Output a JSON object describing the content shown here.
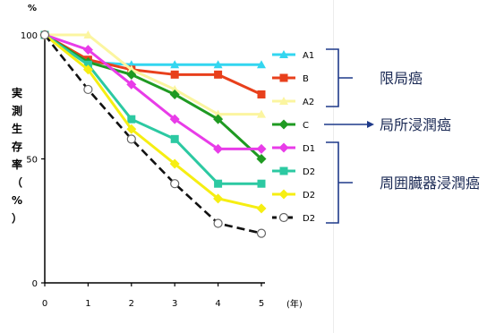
{
  "chart_data": {
    "type": "line",
    "y_unit": "%",
    "x_unit": "(年)",
    "ylabel": "実測生存率（%）",
    "x": [
      0,
      1,
      2,
      3,
      4,
      5
    ],
    "xlim": [
      0,
      5
    ],
    "ylim": [
      0,
      100
    ],
    "y_ticks": [
      0,
      50,
      100
    ],
    "grid": false,
    "series": [
      {
        "name": "A1",
        "color": "#33d6f0",
        "marker": "triangle",
        "values": [
          100,
          89,
          88,
          88,
          88,
          88
        ]
      },
      {
        "name": "B",
        "color": "#e8401c",
        "marker": "square",
        "values": [
          100,
          90,
          86,
          84,
          84,
          76
        ]
      },
      {
        "name": "A2",
        "color": "#fbf5a0",
        "marker": "triangle",
        "values": [
          100,
          100,
          86,
          78,
          68,
          68
        ]
      },
      {
        "name": "C",
        "color": "#1f9a22",
        "marker": "diamond",
        "values": [
          100,
          89,
          84,
          76,
          66,
          50
        ]
      },
      {
        "name": "D1",
        "color": "#e83ce8",
        "marker": "diamond",
        "values": [
          100,
          94,
          80,
          66,
          54,
          54
        ]
      },
      {
        "name": "D2",
        "color": "#2cc9a2",
        "marker": "square",
        "values": [
          100,
          88,
          66,
          58,
          40,
          40
        ]
      },
      {
        "name": "D2",
        "color": "#f6ee12",
        "marker": "diamond",
        "values": [
          100,
          86,
          62,
          48,
          34,
          30
        ]
      },
      {
        "name": "D2",
        "color": "#111111",
        "marker": "circle",
        "dashed": true,
        "values": [
          100,
          78,
          58,
          40,
          24,
          20
        ]
      }
    ],
    "annotations": [
      {
        "text": "限局癌",
        "legend_span": [
          0,
          2
        ]
      },
      {
        "text": "局所浸潤癌",
        "legend_span": [
          3,
          3
        ]
      },
      {
        "text": "周囲臓器浸潤癌",
        "legend_span": [
          4,
          7
        ]
      }
    ]
  }
}
